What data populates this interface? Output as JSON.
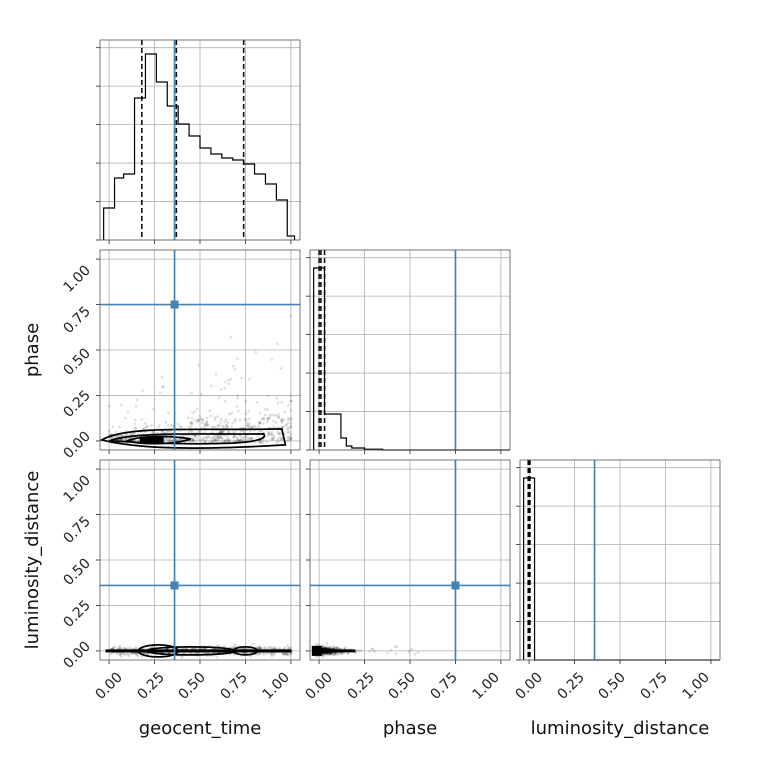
{
  "chart_data": {
    "type": "corner",
    "parameters": [
      "geocent_time",
      "phase",
      "luminosity_distance"
    ],
    "truths": {
      "geocent_time": 0.36,
      "phase": 0.75,
      "luminosity_distance": 0.36
    },
    "ticks": {
      "geocent_time": [
        "0.00",
        "0.25",
        "0.50",
        "0.75",
        "1.00"
      ],
      "phase": [
        "0.00",
        "0.25",
        "0.50",
        "0.75",
        "1.00"
      ],
      "luminosity_distance": [
        "0.00",
        "0.25",
        "0.50",
        "0.75",
        "1.00"
      ]
    },
    "ranges": {
      "geocent_time": [
        -0.05,
        1.05
      ],
      "phase": [
        -0.05,
        1.05
      ],
      "luminosity_distance": [
        -0.05,
        1.05
      ]
    },
    "histograms": {
      "geocent_time": {
        "bins": [
          -0.03,
          0.0,
          0.03,
          0.05,
          0.08,
          0.11,
          0.14,
          0.17,
          0.2,
          0.23,
          0.26,
          0.29,
          0.32,
          0.35,
          0.38,
          0.41,
          0.44,
          0.47,
          0.5,
          0.53,
          0.56,
          0.59,
          0.62,
          0.65,
          0.68,
          0.71,
          0.74,
          0.77,
          0.8,
          0.83,
          0.86,
          0.89,
          0.92,
          0.95,
          0.98,
          1.02
        ],
        "counts": [
          0.16,
          0.16,
          0.31,
          0.31,
          0.33,
          0.33,
          0.71,
          0.71,
          0.93,
          0.93,
          0.79,
          0.79,
          0.67,
          0.67,
          0.58,
          0.58,
          0.52,
          0.52,
          0.46,
          0.46,
          0.43,
          0.43,
          0.41,
          0.41,
          0.4,
          0.4,
          0.38,
          0.38,
          0.33,
          0.33,
          0.28,
          0.28,
          0.2,
          0.2,
          0.02
        ]
      },
      "phase": {
        "bins": [
          -0.03,
          0.0,
          0.03,
          0.06,
          0.09,
          0.12,
          0.15,
          0.18,
          0.25,
          0.35,
          1.05
        ],
        "counts": [
          0.91,
          0.91,
          0.18,
          0.18,
          0.18,
          0.06,
          0.02,
          0.01,
          0.004,
          0.0
        ]
      },
      "luminosity_distance": {
        "bins": [
          -0.03,
          0.0,
          0.03,
          1.05
        ],
        "counts": [
          0.91,
          0.91,
          0.0
        ]
      }
    },
    "quantiles": {
      "geocent_time": [
        0.18,
        0.37,
        0.74
      ],
      "phase": [
        0.0,
        0.01,
        0.03
      ],
      "luminosity_distance": [
        -0.005,
        0.0,
        0.005
      ]
    }
  }
}
